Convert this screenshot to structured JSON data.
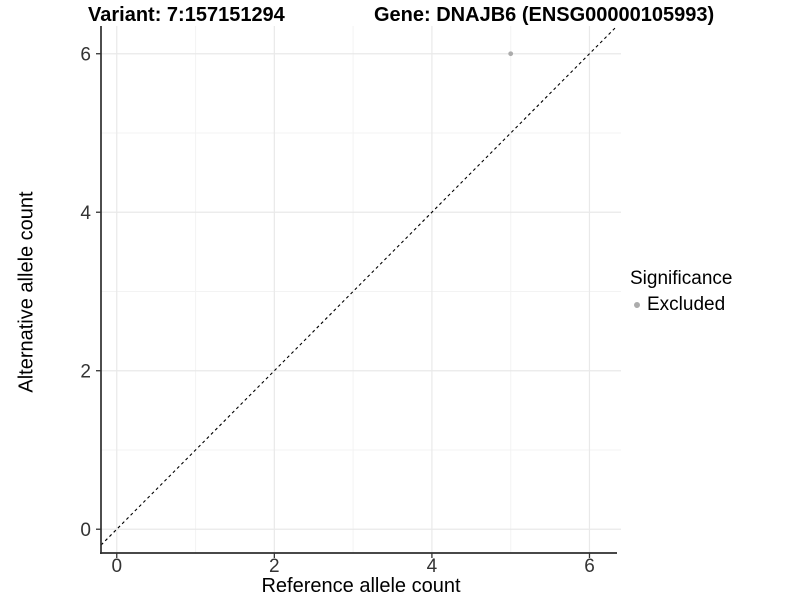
{
  "header": {
    "variant_title": "Variant: 7:157151294",
    "gene_title": "Gene: DNAJB6 (ENSG00000105993)"
  },
  "chart_data": {
    "type": "scatter",
    "title": "Variant: 7:157151294  Gene: DNAJB6 (ENSG00000105993)",
    "xlabel": "Reference allele count",
    "ylabel": "Alternative allele count",
    "xlim": [
      -0.2,
      6.4
    ],
    "ylim": [
      -0.3,
      6.35
    ],
    "xticks": [
      0,
      2,
      4,
      6
    ],
    "yticks": [
      0,
      2,
      4,
      6
    ],
    "xticks_minor": [
      1,
      3,
      5
    ],
    "yticks_minor": [
      1,
      3,
      5
    ],
    "grid": "major+minor",
    "series": [
      {
        "name": "Excluded",
        "color": "#acacac",
        "marker": "circle",
        "points": [
          {
            "x": 5,
            "y": 6
          }
        ]
      }
    ],
    "reference_line": {
      "type": "identity",
      "slope": 1,
      "intercept": 0,
      "style": "dashed",
      "color": "#000000"
    },
    "legend": {
      "title": "Significance",
      "position": "right",
      "entries": [
        {
          "label": "Excluded",
          "color": "#acacac",
          "marker": "circle"
        }
      ]
    }
  },
  "colors": {
    "background": "#ffffff",
    "grid_major": "#e9e9e9",
    "grid_minor": "#f3f3f3",
    "axis_line": "#2e2e2e",
    "tick_mark": "#333333",
    "tick_label": "#333333",
    "text": "#000000"
  }
}
